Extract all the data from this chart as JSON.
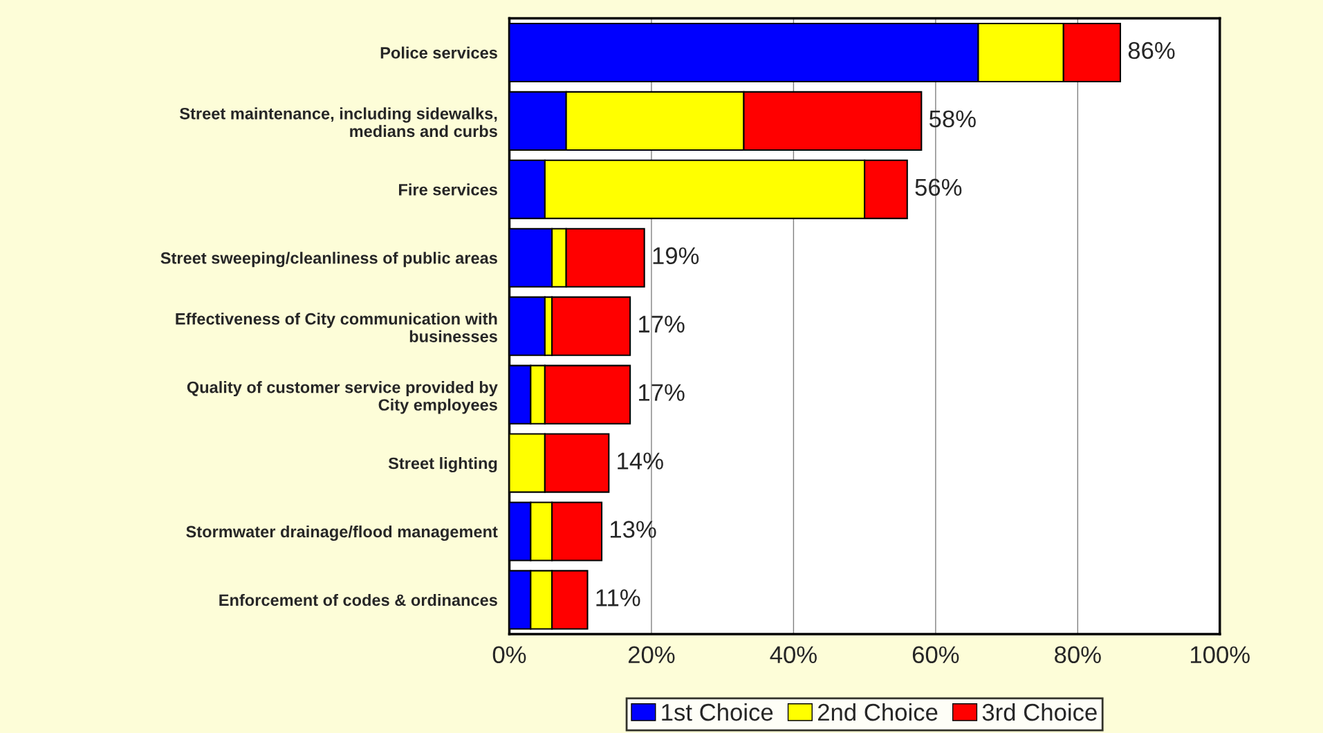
{
  "chart_data": {
    "type": "bar",
    "orientation": "horizontal",
    "stacked": true,
    "categories": [
      "Police services",
      "Street maintenance, including sidewalks,\nmedians and curbs",
      "Fire services",
      "Street sweeping/cleanliness of public areas",
      "Effectiveness of City communication with\nbusinesses",
      "Quality of customer service provided by\nCity employees",
      "Street lighting",
      "Stormwater drainage/flood management",
      "Enforcement of codes & ordinances"
    ],
    "series": [
      {
        "name": "1st Choice",
        "color": "#0000ff",
        "values": [
          66,
          8,
          5,
          6,
          5,
          3,
          0,
          3,
          3
        ]
      },
      {
        "name": "2nd Choice",
        "color": "#ffff00",
        "values": [
          12,
          25,
          45,
          2,
          1,
          2,
          5,
          3,
          3
        ]
      },
      {
        "name": "3rd Choice",
        "color": "#ff0000",
        "values": [
          8,
          25,
          6,
          11,
          11,
          12,
          9,
          7,
          5
        ]
      }
    ],
    "totals": [
      "86%",
      "58%",
      "56%",
      "19%",
      "17%",
      "17%",
      "14%",
      "13%",
      "11%"
    ],
    "xlim": [
      0,
      100
    ],
    "xticks": [
      {
        "value": 0,
        "label": "0%"
      },
      {
        "value": 20,
        "label": "20%"
      },
      {
        "value": 40,
        "label": "40%"
      },
      {
        "value": 60,
        "label": "60%"
      },
      {
        "value": 80,
        "label": "80%"
      },
      {
        "value": 100,
        "label": "100%"
      }
    ],
    "grid": "x",
    "legend": "bottom"
  }
}
